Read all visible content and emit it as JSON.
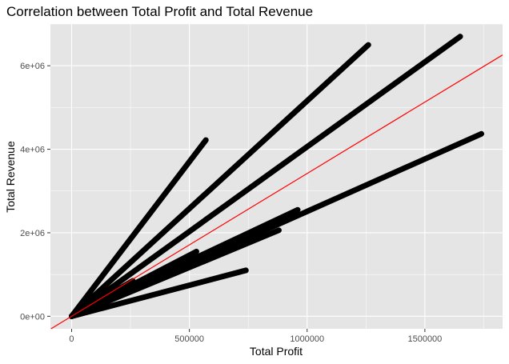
{
  "chart_data": {
    "type": "scatter",
    "title": "Correlation between Total Profit and Total Revenue",
    "xlabel": "Total Profit",
    "ylabel": "Total Revenue",
    "xlim": [
      -90000,
      1830000
    ],
    "ylim": [
      -300000,
      7000000
    ],
    "x_ticks": [
      {
        "value": 0,
        "label": "0"
      },
      {
        "value": 500000,
        "label": "500000"
      },
      {
        "value": 1000000,
        "label": "1000000"
      },
      {
        "value": 1500000,
        "label": "1500000"
      }
    ],
    "y_ticks": [
      {
        "value": 0,
        "label": "0e+00"
      },
      {
        "value": 2000000,
        "label": "2e+06"
      },
      {
        "value": 4000000,
        "label": "4e+06"
      },
      {
        "value": 6000000,
        "label": "6e+06"
      }
    ],
    "point_color": "#000000",
    "background_color": "#e5e5e5",
    "grid_color": "#ffffff",
    "grid": true,
    "series": [
      {
        "x": [
          0,
          570000
        ],
        "y": [
          0,
          4220000
        ]
      },
      {
        "x": [
          0,
          1260000
        ],
        "y": [
          0,
          6500000
        ]
      },
      {
        "x": [
          0,
          1650000
        ],
        "y": [
          0,
          6700000
        ]
      },
      {
        "x": [
          0,
          1740000
        ],
        "y": [
          0,
          4370000
        ]
      },
      {
        "x": [
          0,
          960000
        ],
        "y": [
          0,
          2550000
        ]
      },
      {
        "x": [
          0,
          880000
        ],
        "y": [
          0,
          2060000
        ]
      },
      {
        "x": [
          0,
          740000
        ],
        "y": [
          0,
          1100000
        ]
      },
      {
        "x": [
          0,
          530000
        ],
        "y": [
          0,
          1550000
        ]
      },
      {
        "x": [
          0,
          260000
        ],
        "y": [
          0,
          850000
        ]
      }
    ],
    "reference_line": {
      "color": "#ff0000",
      "intercept": 0,
      "slope": 3.42
    }
  }
}
